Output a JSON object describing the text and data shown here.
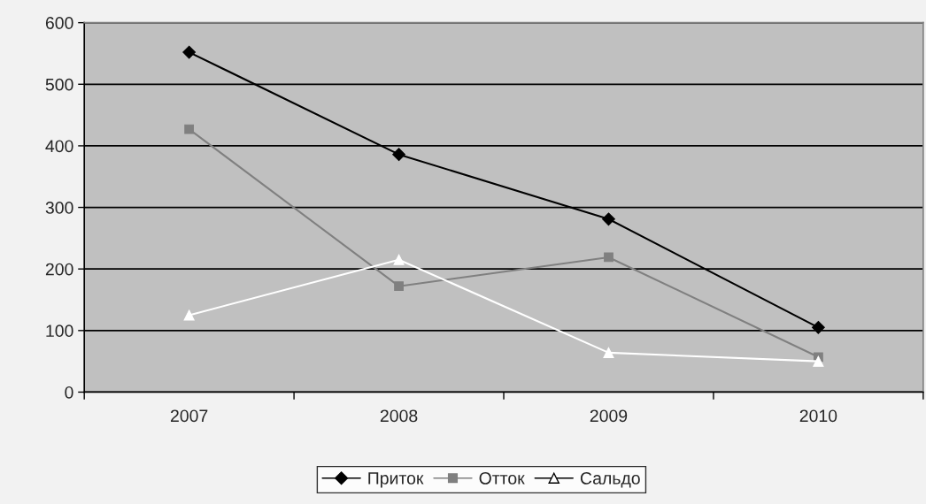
{
  "chart_data": {
    "type": "line",
    "categories": [
      "2007",
      "2008",
      "2009",
      "2010"
    ],
    "series": [
      {
        "name": "Приток",
        "color": "#000000",
        "marker": "diamond",
        "values": [
          552,
          386,
          281,
          105
        ]
      },
      {
        "name": "Отток",
        "color": "#808080",
        "marker": "square",
        "values": [
          427,
          172,
          219,
          57
        ]
      },
      {
        "name": "Сальдо",
        "color": "#ffffff",
        "marker": "triangle",
        "values": [
          125,
          215,
          64,
          50
        ]
      }
    ],
    "ylim": [
      0,
      600
    ],
    "yticks": [
      0,
      100,
      200,
      300,
      400,
      500,
      600
    ],
    "grid": "y",
    "legend": "bottom"
  }
}
